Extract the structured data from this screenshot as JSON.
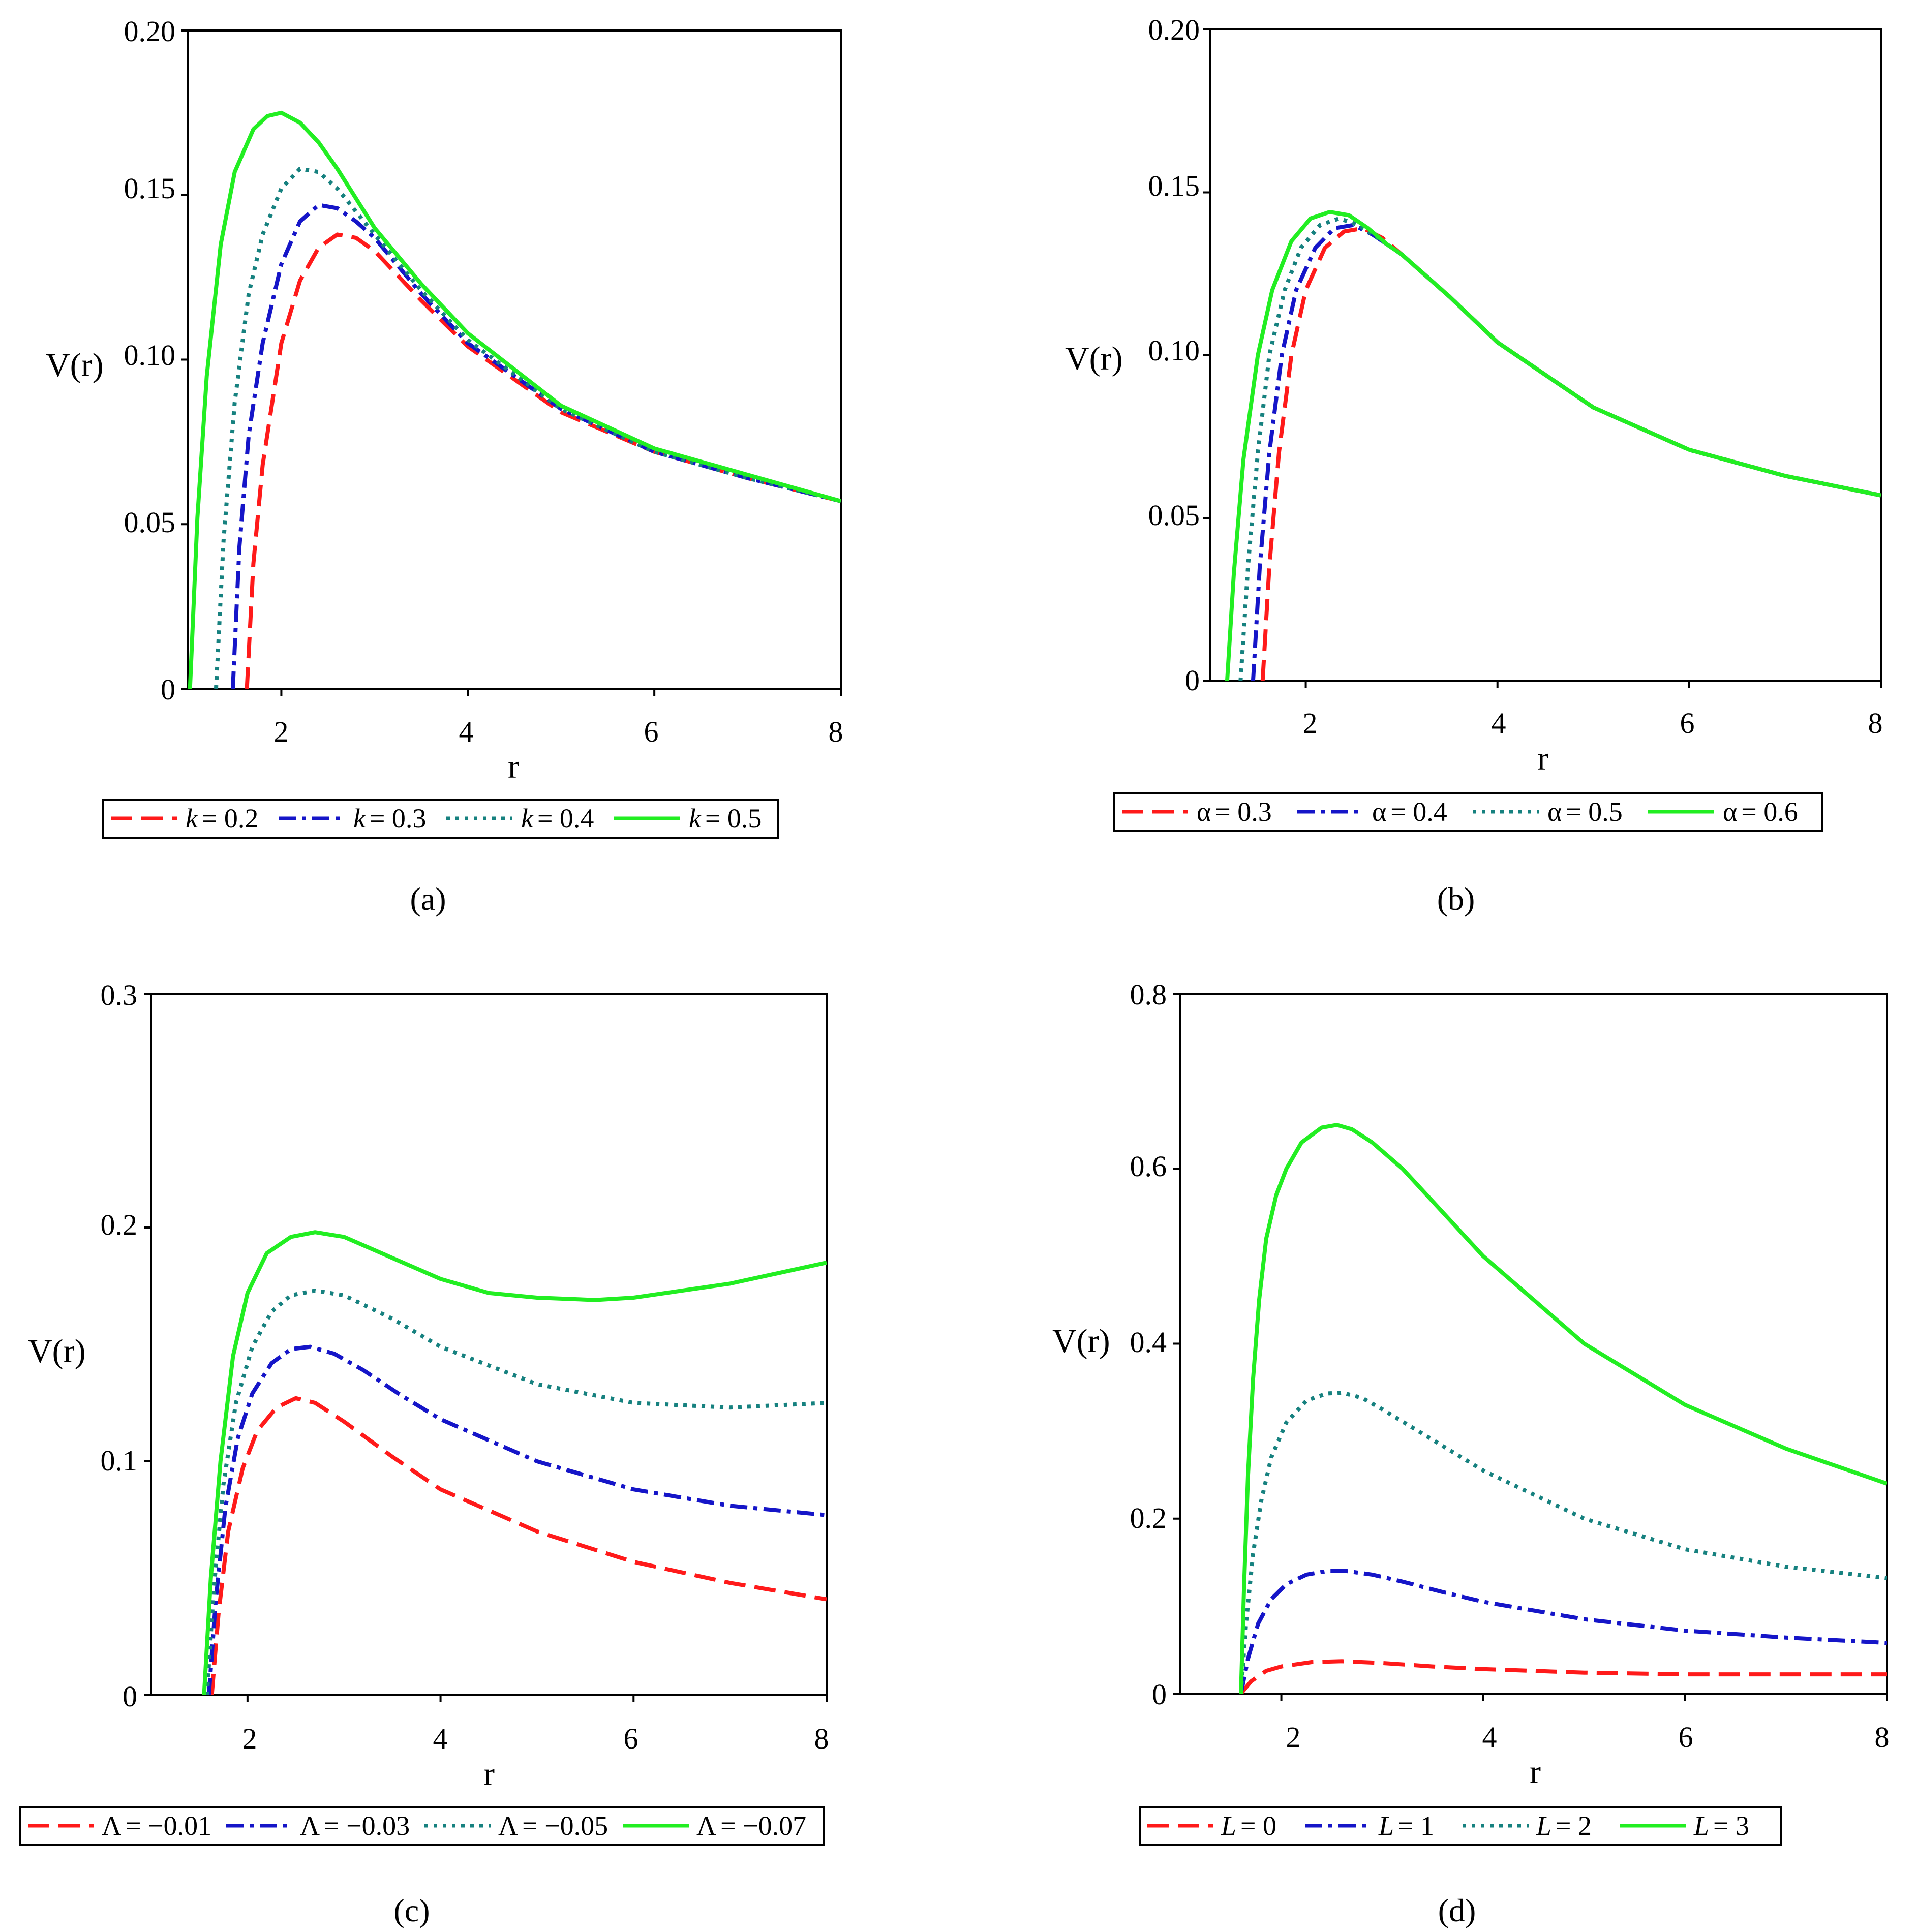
{
  "colors": {
    "red": "#ff1a1a",
    "blue": "#1515c8",
    "teal": "#16817f",
    "green": "#22ee22"
  },
  "chart_data": [
    {
      "type": "line",
      "panel": "a",
      "caption": "(a)",
      "xlabel": "r",
      "ylabel": "V(r)",
      "xlim": [
        1.0,
        8.0
      ],
      "ylim": [
        0,
        0.2
      ],
      "xticks": [
        2,
        4,
        6,
        8
      ],
      "xtick_labels": [
        "2",
        "4",
        "6",
        "8"
      ],
      "yticks": [
        0,
        0.05,
        0.1,
        0.15,
        0.2
      ],
      "ytick_labels": [
        "0",
        "0.05",
        "0.10",
        "0.15",
        "0.20"
      ],
      "series": [
        {
          "symbol": "k",
          "label": "= 0.2",
          "style": "dashed",
          "color": "red",
          "x": [
            1.63,
            1.7,
            1.8,
            2.0,
            2.2,
            2.4,
            2.6,
            2.8,
            3.0,
            3.5,
            4.0,
            5.0,
            6.0,
            7.0,
            8.0
          ],
          "y": [
            0.0,
            0.038,
            0.068,
            0.105,
            0.124,
            0.134,
            0.138,
            0.137,
            0.133,
            0.118,
            0.104,
            0.084,
            0.072,
            0.064,
            0.057
          ]
        },
        {
          "symbol": "k",
          "label": "= 0.3",
          "style": "dashdot",
          "color": "blue",
          "x": [
            1.48,
            1.55,
            1.65,
            1.8,
            2.0,
            2.2,
            2.4,
            2.6,
            2.8,
            3.0,
            3.5,
            4.0,
            5.0,
            6.0,
            7.0,
            8.0
          ],
          "y": [
            0.0,
            0.043,
            0.077,
            0.105,
            0.129,
            0.142,
            0.147,
            0.146,
            0.142,
            0.137,
            0.12,
            0.105,
            0.085,
            0.072,
            0.064,
            0.057
          ]
        },
        {
          "symbol": "k",
          "label": "= 0.4",
          "style": "dotted",
          "color": "teal",
          "x": [
            1.3,
            1.38,
            1.5,
            1.65,
            1.8,
            2.0,
            2.2,
            2.4,
            2.6,
            2.8,
            3.0,
            3.5,
            4.0,
            5.0,
            6.0,
            7.0,
            8.0
          ],
          "y": [
            0.0,
            0.045,
            0.087,
            0.12,
            0.138,
            0.152,
            0.158,
            0.157,
            0.152,
            0.145,
            0.138,
            0.121,
            0.106,
            0.085,
            0.072,
            0.064,
            0.057
          ]
        },
        {
          "symbol": "k",
          "label": "= 0.5",
          "style": "solid",
          "color": "green",
          "x": [
            1.02,
            1.1,
            1.2,
            1.35,
            1.5,
            1.7,
            1.85,
            2.0,
            2.2,
            2.4,
            2.6,
            2.8,
            3.0,
            3.5,
            4.0,
            5.0,
            6.0,
            7.0,
            8.0
          ],
          "y": [
            0.0,
            0.052,
            0.095,
            0.135,
            0.157,
            0.17,
            0.174,
            0.175,
            0.172,
            0.166,
            0.158,
            0.149,
            0.14,
            0.123,
            0.108,
            0.086,
            0.073,
            0.065,
            0.057
          ]
        }
      ]
    },
    {
      "type": "line",
      "panel": "b",
      "caption": "(b)",
      "xlabel": "r",
      "ylabel": "V(r)",
      "xlim": [
        1.0,
        8.0
      ],
      "ylim": [
        0,
        0.2
      ],
      "xticks": [
        2,
        4,
        6,
        8
      ],
      "xtick_labels": [
        "2",
        "4",
        "6",
        "8"
      ],
      "yticks": [
        0,
        0.05,
        0.1,
        0.15,
        0.2
      ],
      "ytick_labels": [
        "0",
        "0.05",
        "0.10",
        "0.15",
        "0.20"
      ],
      "series": [
        {
          "symbol": "α",
          "label": "= 0.3",
          "style": "dashed",
          "color": "red",
          "x": [
            1.55,
            1.62,
            1.72,
            1.85,
            2.0,
            2.2,
            2.4,
            2.6,
            2.8,
            3.0,
            3.5,
            4.0,
            5.0,
            6.0,
            7.0,
            8.0
          ],
          "y": [
            0.0,
            0.035,
            0.07,
            0.1,
            0.12,
            0.133,
            0.138,
            0.139,
            0.136,
            0.131,
            0.118,
            0.104,
            0.084,
            0.071,
            0.063,
            0.057
          ]
        },
        {
          "symbol": "α",
          "label": "= 0.4",
          "style": "dashdot",
          "color": "blue",
          "x": [
            1.45,
            1.52,
            1.62,
            1.75,
            1.9,
            2.1,
            2.3,
            2.5,
            2.7,
            3.0,
            3.5,
            4.0,
            5.0,
            6.0,
            7.0,
            8.0
          ],
          "y": [
            0.0,
            0.035,
            0.07,
            0.1,
            0.12,
            0.133,
            0.139,
            0.14,
            0.137,
            0.131,
            0.118,
            0.104,
            0.084,
            0.071,
            0.063,
            0.057
          ]
        },
        {
          "symbol": "α",
          "label": "= 0.5",
          "style": "dotted",
          "color": "teal",
          "x": [
            1.32,
            1.4,
            1.5,
            1.62,
            1.78,
            1.95,
            2.15,
            2.35,
            2.55,
            2.8,
            3.0,
            3.5,
            4.0,
            5.0,
            6.0,
            7.0,
            8.0
          ],
          "y": [
            0.0,
            0.036,
            0.07,
            0.1,
            0.12,
            0.133,
            0.14,
            0.142,
            0.14,
            0.135,
            0.131,
            0.118,
            0.104,
            0.084,
            0.071,
            0.063,
            0.057
          ]
        },
        {
          "symbol": "α",
          "label": "= 0.6",
          "style": "solid",
          "color": "green",
          "x": [
            1.18,
            1.25,
            1.35,
            1.5,
            1.65,
            1.85,
            2.05,
            2.25,
            2.45,
            2.65,
            2.85,
            3.0,
            3.5,
            4.0,
            5.0,
            6.0,
            7.0,
            8.0
          ],
          "y": [
            0.0,
            0.033,
            0.068,
            0.1,
            0.12,
            0.135,
            0.142,
            0.144,
            0.143,
            0.139,
            0.134,
            0.131,
            0.118,
            0.104,
            0.084,
            0.071,
            0.063,
            0.057
          ]
        }
      ]
    },
    {
      "type": "line",
      "panel": "c",
      "caption": "(c)",
      "xlabel": "r",
      "ylabel": "V(r)",
      "xlim": [
        1.0,
        8.0
      ],
      "ylim": [
        0,
        0.3
      ],
      "xticks": [
        2,
        4,
        6,
        8
      ],
      "xtick_labels": [
        "2",
        "4",
        "6",
        "8"
      ],
      "yticks": [
        0,
        0.1,
        0.2,
        0.3
      ],
      "ytick_labels": [
        "0",
        "0.1",
        "0.2",
        "0.3"
      ],
      "series": [
        {
          "symbol": "Λ",
          "label": "= −0.01",
          "style": "dashed",
          "color": "red",
          "x": [
            1.63,
            1.7,
            1.8,
            1.95,
            2.1,
            2.3,
            2.5,
            2.7,
            3.0,
            3.5,
            4.0,
            5.0,
            6.0,
            7.0,
            8.0
          ],
          "y": [
            0.0,
            0.035,
            0.07,
            0.097,
            0.113,
            0.123,
            0.127,
            0.125,
            0.117,
            0.102,
            0.088,
            0.07,
            0.057,
            0.048,
            0.041
          ]
        },
        {
          "symbol": "Λ",
          "label": "= −0.03",
          "style": "dashdot",
          "color": "blue",
          "x": [
            1.6,
            1.67,
            1.77,
            1.9,
            2.05,
            2.25,
            2.45,
            2.65,
            2.9,
            3.2,
            3.6,
            4.0,
            5.0,
            6.0,
            7.0,
            8.0
          ],
          "y": [
            0.0,
            0.04,
            0.08,
            0.11,
            0.129,
            0.142,
            0.148,
            0.149,
            0.146,
            0.139,
            0.128,
            0.118,
            0.1,
            0.088,
            0.081,
            0.077
          ]
        },
        {
          "symbol": "Λ",
          "label": "= −0.05",
          "style": "dotted",
          "color": "teal",
          "x": [
            1.58,
            1.65,
            1.75,
            1.88,
            2.05,
            2.25,
            2.45,
            2.7,
            3.0,
            3.5,
            4.0,
            5.0,
            6.0,
            7.0,
            8.0
          ],
          "y": [
            0.0,
            0.045,
            0.09,
            0.125,
            0.149,
            0.164,
            0.171,
            0.173,
            0.171,
            0.161,
            0.149,
            0.133,
            0.125,
            0.123,
            0.125
          ]
        },
        {
          "symbol": "Λ",
          "label": "= −0.07",
          "style": "solid",
          "color": "green",
          "x": [
            1.55,
            1.62,
            1.72,
            1.85,
            2.0,
            2.2,
            2.45,
            2.7,
            3.0,
            3.5,
            4.0,
            4.5,
            5.0,
            5.6,
            6.0,
            7.0,
            8.0
          ],
          "y": [
            0.0,
            0.05,
            0.1,
            0.145,
            0.172,
            0.189,
            0.196,
            0.198,
            0.196,
            0.187,
            0.178,
            0.172,
            0.17,
            0.169,
            0.17,
            0.176,
            0.185
          ]
        }
      ]
    },
    {
      "type": "line",
      "panel": "d",
      "caption": "(d)",
      "xlabel": "r",
      "ylabel": "V(r)",
      "xlim": [
        1.0,
        8.0
      ],
      "ylim": [
        0,
        0.8
      ],
      "xticks": [
        2,
        4,
        6,
        8
      ],
      "xtick_labels": [
        "2",
        "4",
        "6",
        "8"
      ],
      "yticks": [
        0,
        0.2,
        0.4,
        0.6,
        0.8
      ],
      "ytick_labels": [
        "0",
        "0.2",
        "0.4",
        "0.6",
        "0.8"
      ],
      "series": [
        {
          "symbol": "L",
          "label": "= 0",
          "style": "dashed",
          "color": "red",
          "x": [
            1.6,
            1.7,
            1.85,
            2.0,
            2.3,
            2.6,
            3.0,
            3.5,
            4.0,
            5.0,
            6.0,
            7.0,
            8.0
          ],
          "y": [
            0.0,
            0.014,
            0.026,
            0.031,
            0.036,
            0.037,
            0.035,
            0.031,
            0.028,
            0.024,
            0.022,
            0.022,
            0.022
          ]
        },
        {
          "symbol": "L",
          "label": "= 1",
          "style": "dashdot",
          "color": "blue",
          "x": [
            1.6,
            1.67,
            1.77,
            1.9,
            2.05,
            2.25,
            2.45,
            2.65,
            2.9,
            3.2,
            3.6,
            4.0,
            5.0,
            6.0,
            7.0,
            8.0
          ],
          "y": [
            0.0,
            0.04,
            0.08,
            0.108,
            0.125,
            0.136,
            0.14,
            0.14,
            0.136,
            0.128,
            0.116,
            0.105,
            0.085,
            0.072,
            0.064,
            0.058
          ]
        },
        {
          "symbol": "L",
          "label": "= 2",
          "style": "dotted",
          "color": "teal",
          "x": [
            1.6,
            1.65,
            1.72,
            1.8,
            1.9,
            2.05,
            2.25,
            2.45,
            2.6,
            2.8,
            3.0,
            3.5,
            4.0,
            5.0,
            6.0,
            7.0,
            8.0
          ],
          "y": [
            0.0,
            0.08,
            0.16,
            0.22,
            0.27,
            0.31,
            0.335,
            0.343,
            0.344,
            0.338,
            0.325,
            0.29,
            0.255,
            0.2,
            0.165,
            0.145,
            0.132
          ]
        },
        {
          "symbol": "L",
          "label": "= 3",
          "style": "solid",
          "color": "green",
          "x": [
            1.6,
            1.63,
            1.67,
            1.72,
            1.78,
            1.85,
            1.95,
            2.05,
            2.2,
            2.4,
            2.55,
            2.7,
            2.9,
            3.2,
            3.6,
            4.0,
            4.5,
            5.0,
            6.0,
            7.0,
            8.0
          ],
          "y": [
            0.0,
            0.12,
            0.25,
            0.36,
            0.45,
            0.52,
            0.57,
            0.6,
            0.63,
            0.647,
            0.65,
            0.645,
            0.63,
            0.6,
            0.55,
            0.5,
            0.45,
            0.4,
            0.33,
            0.28,
            0.24
          ]
        }
      ]
    }
  ]
}
